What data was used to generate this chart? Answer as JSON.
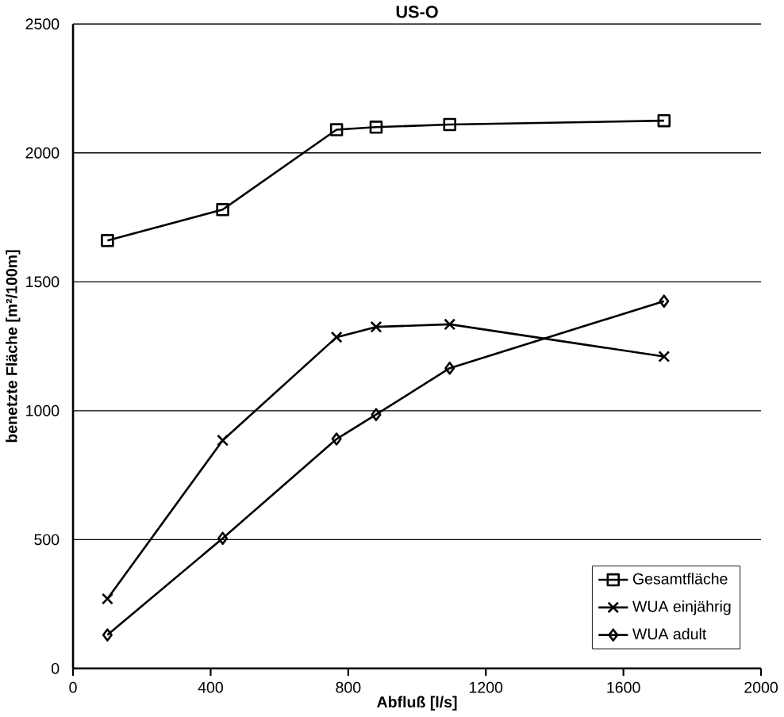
{
  "chart_data": {
    "type": "line",
    "title": "US-O",
    "xlabel": "Abfluß [l/s]",
    "ylabel": "benetzte Fläche [m²/100m]",
    "x": [
      100,
      435,
      766,
      881,
      1095,
      1718
    ],
    "xlim": [
      0,
      2000
    ],
    "xticks": [
      0,
      400,
      800,
      1200,
      1600,
      2000
    ],
    "ylim": [
      0,
      2500
    ],
    "yticks": [
      0,
      500,
      1000,
      1500,
      2000,
      2500
    ],
    "grid": "y",
    "legend": "bottom right",
    "series": [
      {
        "name": "Gesamtfläche",
        "color": "#000000",
        "marker": "square",
        "values": [
          1660,
          1780,
          2090,
          2100,
          2110,
          2125
        ]
      },
      {
        "name": "WUA einjährig",
        "color": "#000000",
        "marker": "cross",
        "values": [
          270,
          885,
          1285,
          1325,
          1335,
          1210
        ]
      },
      {
        "name": "WUA adult",
        "color": "#000000",
        "marker": "diamond",
        "values": [
          130,
          505,
          890,
          985,
          1165,
          1425
        ]
      }
    ]
  }
}
